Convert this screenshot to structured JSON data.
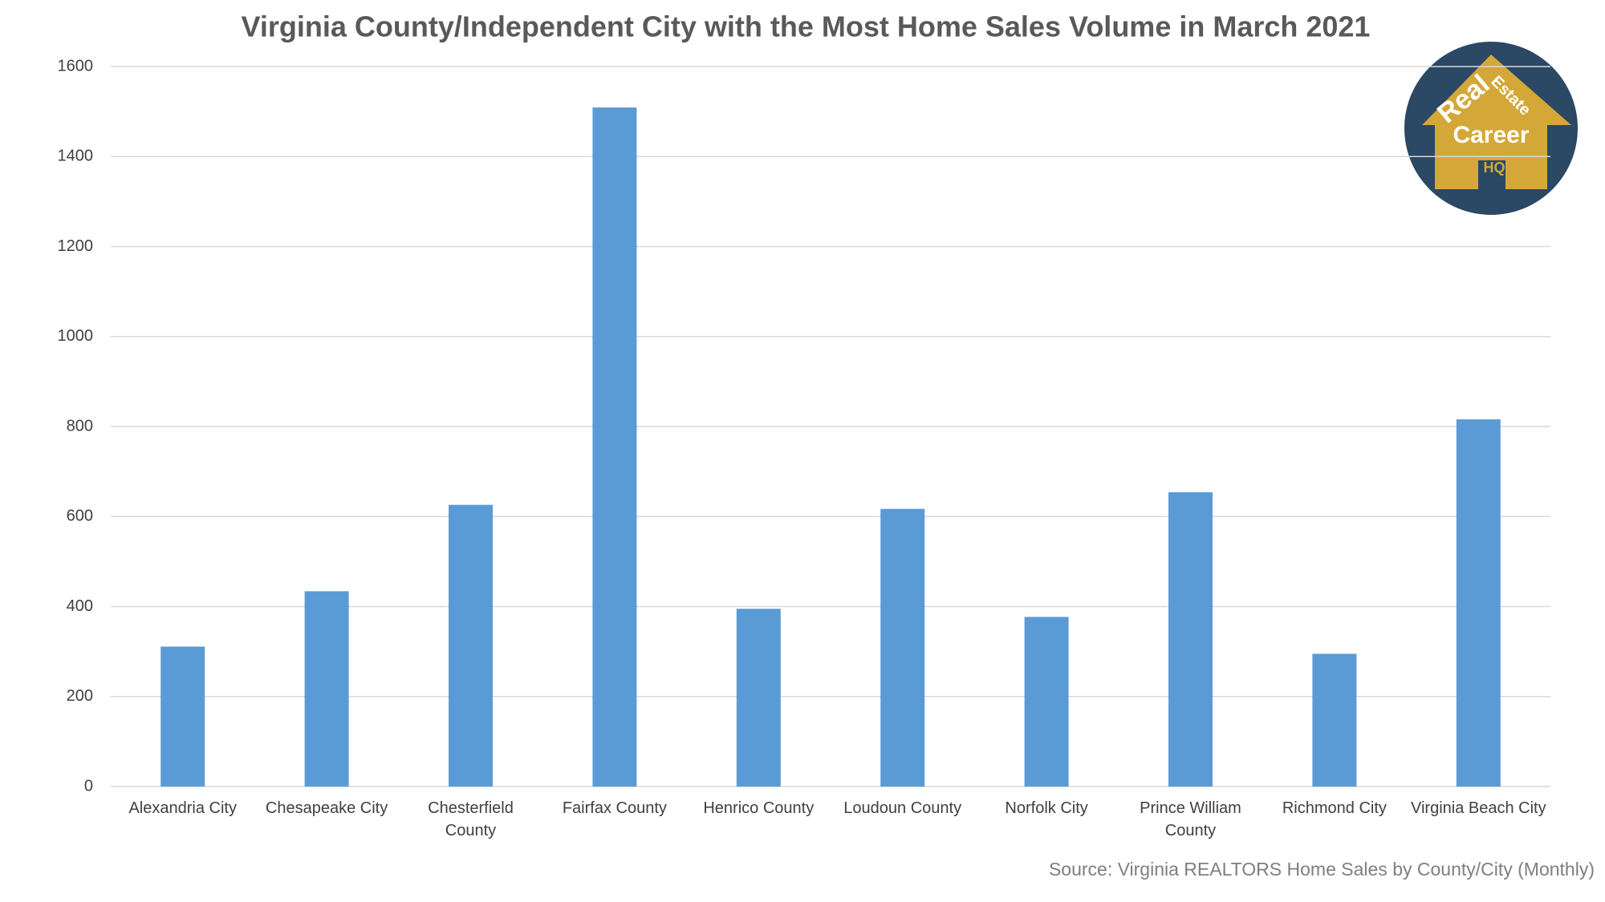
{
  "chart_data": {
    "type": "bar",
    "title": "Virginia County/Independent City with the Most Home Sales Volume in March 2021",
    "categories": [
      "Alexandria City",
      "Chesapeake City",
      "Chesterfield County",
      "Fairfax County",
      "Henrico County",
      "Loudoun County",
      "Norfolk City",
      "Prince William County",
      "Richmond City",
      "Virginia Beach City"
    ],
    "values": [
      311,
      434,
      626,
      1509,
      395,
      617,
      377,
      654,
      295,
      816
    ],
    "color": "#5b9bd5",
    "ylim": [
      0,
      1600
    ],
    "yticks": [
      0,
      200,
      400,
      600,
      800,
      1000,
      1200,
      1400,
      1600
    ],
    "grid": true,
    "source": "Source: Virginia REALTORS Home Sales by County/City (Monthly)"
  },
  "logo": {
    "words": [
      "Real",
      "Estate",
      "Career",
      "HQ"
    ]
  }
}
